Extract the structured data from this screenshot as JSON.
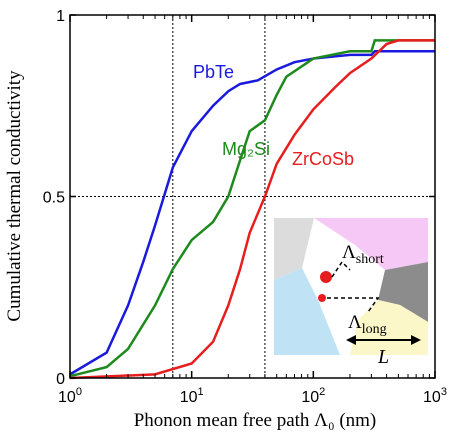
{
  "chart_data": {
    "type": "line",
    "xlabel": "Phonon mean free path Λ₀ (nm)",
    "ylabel": "Cumulative thermal conductivity",
    "xscale": "log",
    "xlim": [
      1,
      1000
    ],
    "ylim": [
      0,
      1
    ],
    "xticks": [
      {
        "value": 1,
        "label": "10",
        "exp": "0"
      },
      {
        "value": 10,
        "label": "10",
        "exp": "1"
      },
      {
        "value": 100,
        "label": "10",
        "exp": "2"
      },
      {
        "value": 1000,
        "label": "10",
        "exp": "3"
      }
    ],
    "yticks": [
      0,
      0.5,
      1
    ],
    "reference_lines": {
      "x": [
        7,
        40
      ],
      "y": [
        0.5
      ]
    },
    "series": [
      {
        "name": "PbTe",
        "color": "#1a1adc",
        "x": [
          1,
          2,
          3,
          4,
          5,
          7,
          10,
          15,
          20,
          25,
          35,
          50,
          70,
          100,
          200,
          300,
          320,
          1000
        ],
        "values": [
          0.01,
          0.07,
          0.2,
          0.32,
          0.42,
          0.58,
          0.68,
          0.75,
          0.79,
          0.81,
          0.82,
          0.85,
          0.87,
          0.88,
          0.89,
          0.89,
          0.9,
          0.9
        ]
      },
      {
        "name": "Mg₂Si",
        "color": "#1e8a1e",
        "x": [
          1,
          2,
          3,
          5,
          7,
          10,
          15,
          20,
          25,
          30,
          40,
          50,
          60,
          100,
          200,
          300,
          320,
          1000
        ],
        "values": [
          0.005,
          0.03,
          0.08,
          0.2,
          0.3,
          0.38,
          0.43,
          0.5,
          0.6,
          0.68,
          0.71,
          0.78,
          0.83,
          0.88,
          0.9,
          0.9,
          0.93,
          0.93
        ]
      },
      {
        "name": "ZrCoSb",
        "color": "#e61e1e",
        "x": [
          1,
          5,
          10,
          15,
          20,
          25,
          30,
          40,
          50,
          70,
          100,
          150,
          200,
          300,
          400,
          500,
          1000
        ],
        "values": [
          0,
          0.01,
          0.04,
          0.1,
          0.2,
          0.3,
          0.4,
          0.5,
          0.59,
          0.67,
          0.74,
          0.8,
          0.84,
          0.88,
          0.92,
          0.93,
          0.93
        ]
      }
    ]
  },
  "inset": {
    "lambda": "Λ",
    "short": "short",
    "long": "long",
    "length": "L"
  }
}
